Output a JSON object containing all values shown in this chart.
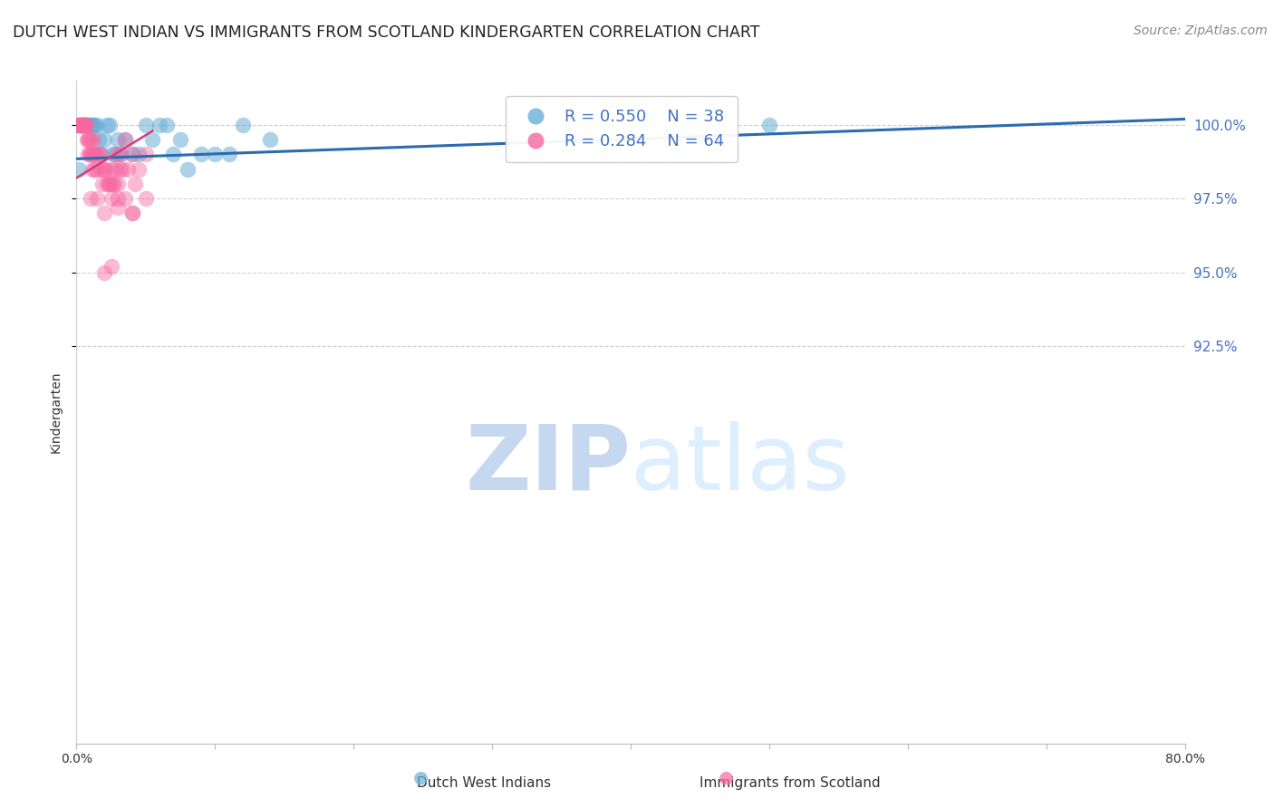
{
  "title": "DUTCH WEST INDIAN VS IMMIGRANTS FROM SCOTLAND KINDERGARTEN CORRELATION CHART",
  "source": "Source: ZipAtlas.com",
  "ylabel": "Kindergarten",
  "right_yticks": [
    100.0,
    97.5,
    95.0,
    92.5
  ],
  "right_ytick_labels": [
    "100.0%",
    "97.5%",
    "95.0%",
    "92.5%"
  ],
  "blue_R": 0.55,
  "blue_N": 38,
  "pink_R": 0.284,
  "pink_N": 64,
  "blue_color": "#6baed6",
  "pink_color": "#f768a1",
  "legend_blue_label": "Dutch West Indians",
  "legend_pink_label": "Immigrants from Scotland",
  "blue_scatter_x": [
    0.3,
    0.4,
    0.5,
    0.6,
    0.7,
    0.8,
    0.9,
    1.0,
    1.1,
    1.2,
    1.3,
    1.5,
    1.6,
    1.8,
    2.0,
    2.2,
    2.4,
    2.6,
    2.8,
    3.0,
    3.2,
    3.5,
    4.0,
    4.5,
    5.0,
    5.5,
    6.0,
    6.5,
    7.0,
    7.5,
    8.0,
    9.0,
    10.0,
    11.0,
    12.0,
    14.0,
    50.0,
    0.15
  ],
  "blue_scatter_y": [
    100.0,
    100.0,
    100.0,
    100.0,
    100.0,
    100.0,
    100.0,
    100.0,
    100.0,
    100.0,
    100.0,
    100.0,
    99.5,
    99.0,
    99.5,
    100.0,
    100.0,
    99.0,
    99.0,
    99.5,
    99.0,
    99.5,
    99.0,
    99.0,
    100.0,
    99.5,
    100.0,
    100.0,
    99.0,
    99.5,
    98.5,
    99.0,
    99.0,
    99.0,
    100.0,
    99.5,
    100.0,
    98.5
  ],
  "pink_scatter_x": [
    0.1,
    0.15,
    0.2,
    0.25,
    0.3,
    0.35,
    0.4,
    0.45,
    0.5,
    0.55,
    0.6,
    0.65,
    0.7,
    0.75,
    0.8,
    0.85,
    0.9,
    0.95,
    1.0,
    1.05,
    1.1,
    1.15,
    1.2,
    1.25,
    1.3,
    1.35,
    1.4,
    1.5,
    1.6,
    1.7,
    1.8,
    1.9,
    2.0,
    2.1,
    2.2,
    2.3,
    2.4,
    2.5,
    2.6,
    2.7,
    2.8,
    2.9,
    3.0,
    3.1,
    3.2,
    3.3,
    3.5,
    3.7,
    4.0,
    4.2,
    4.5,
    5.0,
    1.0,
    1.5,
    2.0,
    2.5,
    3.0,
    3.5,
    4.0,
    5.0,
    2.0,
    2.5,
    3.0,
    4.0
  ],
  "pink_scatter_y": [
    100.0,
    100.0,
    100.0,
    100.0,
    100.0,
    100.0,
    100.0,
    100.0,
    100.0,
    100.0,
    100.0,
    100.0,
    100.0,
    99.5,
    99.5,
    99.0,
    99.5,
    99.0,
    99.5,
    99.0,
    99.0,
    98.5,
    99.0,
    99.5,
    98.5,
    99.0,
    99.0,
    98.5,
    99.0,
    99.0,
    98.5,
    98.0,
    98.5,
    98.5,
    98.0,
    98.0,
    98.0,
    98.5,
    98.0,
    98.0,
    98.5,
    99.0,
    98.0,
    98.5,
    99.0,
    98.5,
    99.5,
    98.5,
    99.0,
    98.0,
    98.5,
    99.0,
    97.5,
    97.5,
    97.0,
    97.5,
    97.5,
    97.5,
    97.0,
    97.5,
    95.0,
    95.2,
    97.2,
    97.0
  ],
  "xmin": 0.0,
  "xmax": 80.0,
  "ymin": 79.0,
  "ymax": 101.5,
  "blue_trend_x0": 0.0,
  "blue_trend_y0": 98.85,
  "blue_trend_x1": 80.0,
  "blue_trend_y1": 100.2,
  "pink_trend_x0": 0.0,
  "pink_trend_y0": 98.2,
  "pink_trend_x1": 5.5,
  "pink_trend_y1": 99.8,
  "background_color": "#ffffff",
  "grid_color": "#d0d0d0",
  "right_axis_color": "#4472c4",
  "title_color": "#222222",
  "title_fontsize": 12.5,
  "label_fontsize": 10,
  "tick_fontsize": 10,
  "source_fontsize": 10,
  "watermark_color": "#ddeeff",
  "watermark_fontsize": 72
}
